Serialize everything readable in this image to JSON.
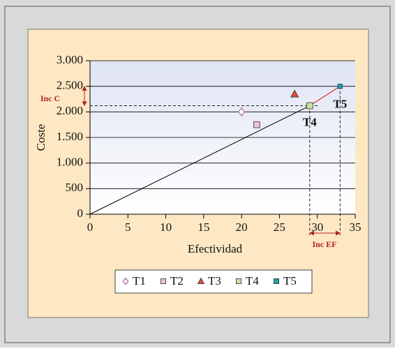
{
  "chart_data": {
    "type": "scatter",
    "x_label": "Efectividad",
    "y_label": "Coste",
    "xlim": [
      0,
      35
    ],
    "xticks": [
      0,
      5,
      10,
      15,
      20,
      25,
      30,
      35
    ],
    "ylim": [
      0,
      3000
    ],
    "yticks": [
      0,
      {
        "value": 500,
        "label": "500"
      },
      {
        "value": 1000,
        "label": "1.000"
      },
      {
        "value": 1500,
        "label": "1.500"
      },
      {
        "value": 2000,
        "label": "2.000"
      },
      {
        "value": 2500,
        "label": "2.500"
      },
      {
        "value": 3000,
        "label": "3.000"
      }
    ],
    "grid": true,
    "series": [
      {
        "name": "T1",
        "color": "#b07fb0",
        "marker": "diamond",
        "x": [
          20
        ],
        "values": [
          2000
        ]
      },
      {
        "name": "T2",
        "color": "#f2bfd8",
        "marker": "square",
        "x": [
          22
        ],
        "values": [
          1750
        ]
      },
      {
        "name": "T3",
        "color": "#e04a3c",
        "marker": "triangle",
        "x": [
          27
        ],
        "values": [
          2350
        ]
      },
      {
        "name": "T4",
        "color": "#c5e3a0",
        "marker": "square",
        "x": [
          29
        ],
        "values": [
          2120
        ]
      },
      {
        "name": "T5",
        "color": "#1fa3b3",
        "marker": "square",
        "x": [
          33
        ],
        "values": [
          2500
        ]
      }
    ],
    "annotations": [
      "Inc C",
      "Inc EF"
    ]
  }
}
